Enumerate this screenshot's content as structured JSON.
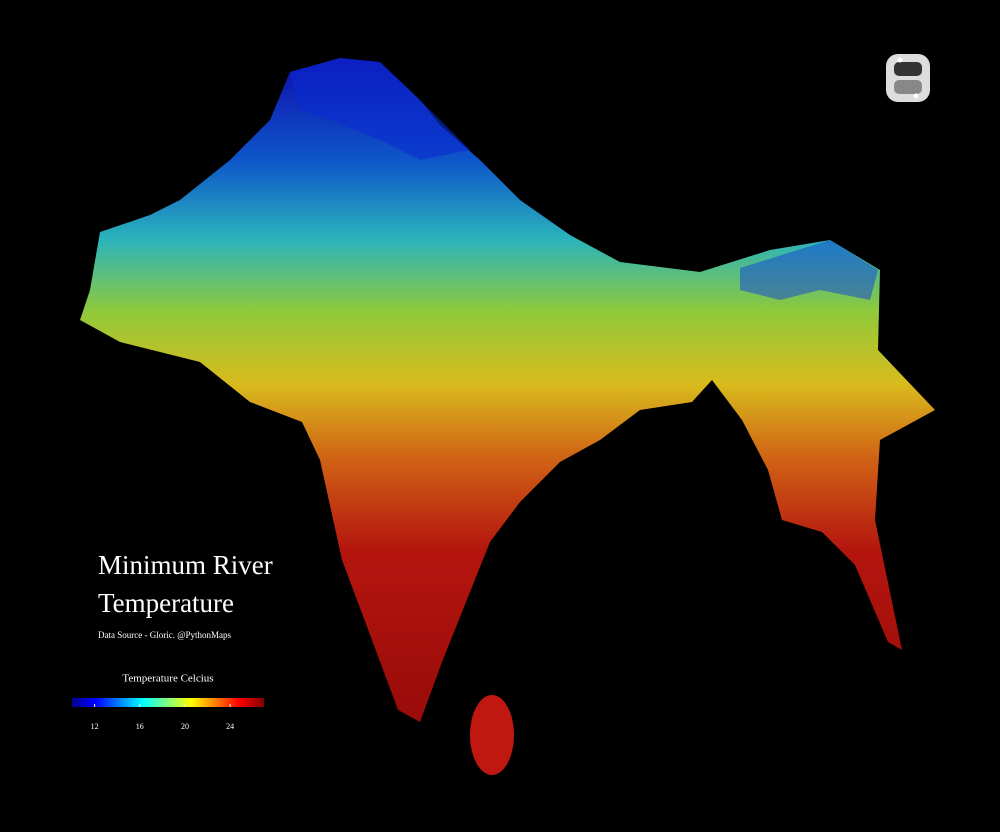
{
  "title": [
    "Minimum River",
    "Temperature"
  ],
  "source": "Data Source - Gloric. @PythonMaps",
  "colorbar": {
    "label": "Temperature Celcius",
    "range": [
      10,
      27
    ],
    "ticks": [
      12,
      16,
      20,
      24
    ]
  }
}
